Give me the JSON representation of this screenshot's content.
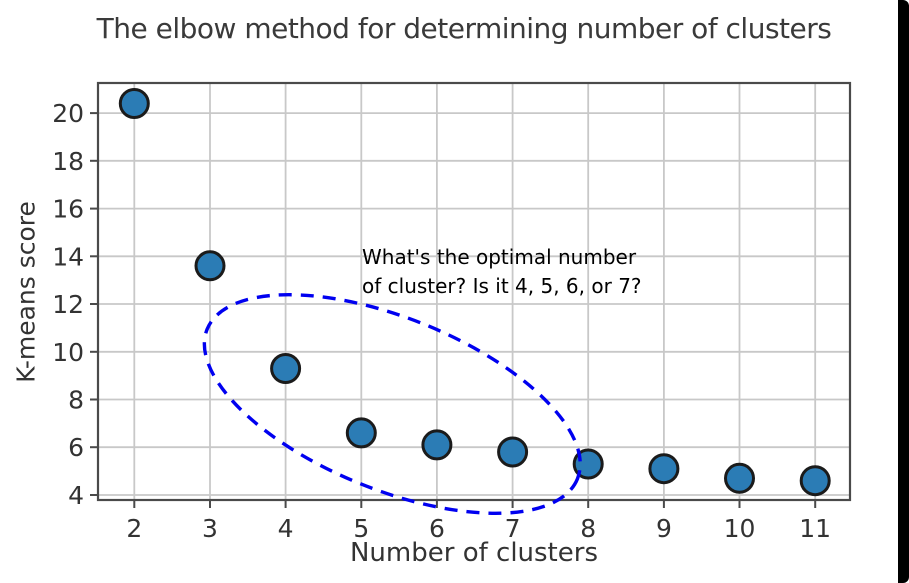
{
  "figure": {
    "background": "#ffffff",
    "edge_strip_color": "#000000"
  },
  "chart_data": {
    "type": "scatter",
    "title": "The elbow method for determining number of clusters",
    "xlabel": "Number of clusters",
    "ylabel": "K-means score",
    "x": [
      2,
      3,
      4,
      5,
      6,
      7,
      8,
      9,
      10,
      11
    ],
    "y": [
      20.4,
      13.6,
      9.3,
      6.6,
      6.1,
      5.8,
      5.3,
      5.1,
      4.7,
      4.6
    ],
    "xticks": [
      "2",
      "3",
      "4",
      "5",
      "6",
      "7",
      "8",
      "9",
      "10",
      "11"
    ],
    "xtick_values": [
      2,
      3,
      4,
      5,
      6,
      7,
      8,
      9,
      10,
      11
    ],
    "yticks": [
      "4",
      "6",
      "8",
      "10",
      "12",
      "14",
      "16",
      "18",
      "20"
    ],
    "ytick_values": [
      4,
      6,
      8,
      10,
      12,
      14,
      16,
      18,
      20
    ],
    "xlim": [
      1.52,
      11.46
    ],
    "ylim": [
      3.79,
      21.26
    ],
    "grid": true,
    "legend": "none",
    "marker": {
      "shape": "circle",
      "fill": "#2b7cb5",
      "edge": "#1b1b1b"
    },
    "ellipse_annotation": {
      "cx": 5.41,
      "cy": 7.81,
      "width": 5.28,
      "height": 7.2,
      "rotation_deg": 22,
      "color": "#0000f0",
      "line_style": "dashed"
    },
    "annotation": {
      "lines": [
        "What's the optimal number",
        "of cluster? Is it 4, 5, 6, or 7?"
      ],
      "color": "#000000"
    },
    "colors": {
      "grid": "#c8c8c8",
      "spine": "#4a4a4a",
      "tick_label": "#333333",
      "title": "#3a3a3a"
    }
  }
}
